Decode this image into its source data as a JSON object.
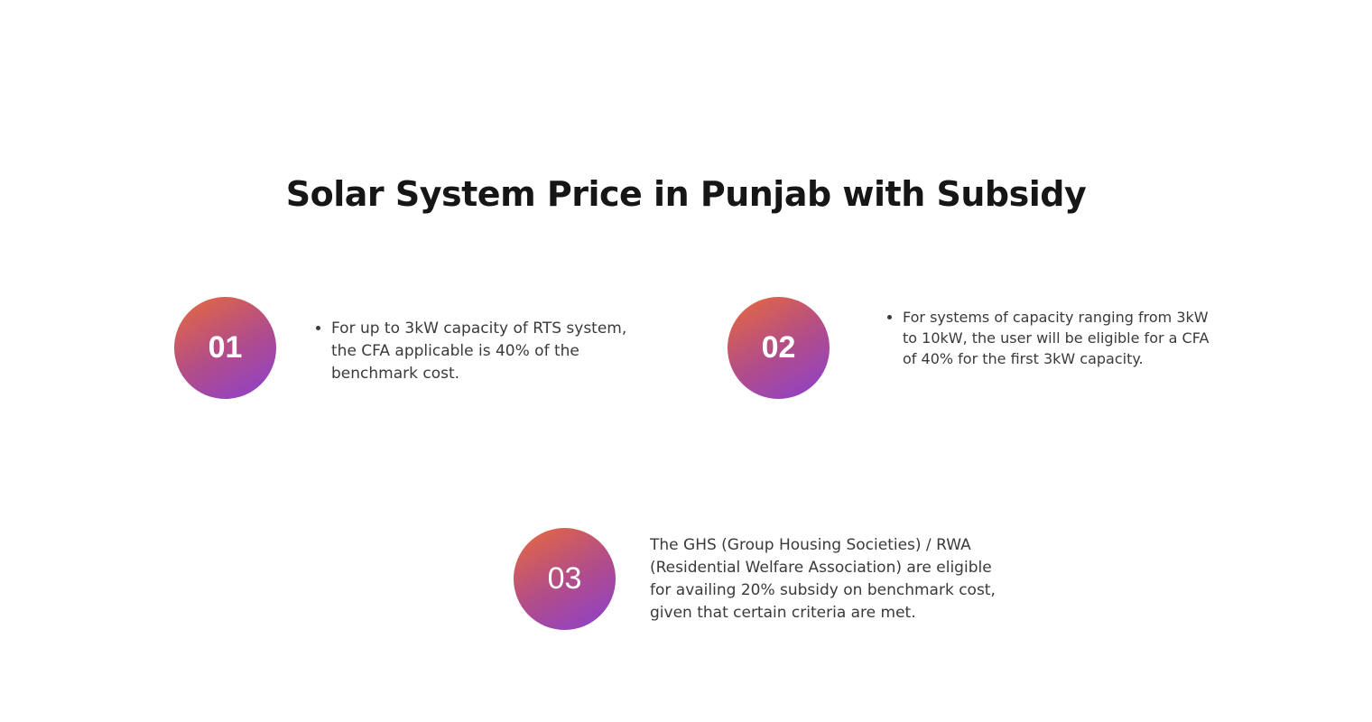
{
  "section": {
    "title": "Solar System Price in Punjab with Subsidy"
  },
  "steps": [
    {
      "number": "01",
      "text": "For up to 3kW capacity of RTS system, the CFA applicable is 40% of the benchmark cost."
    },
    {
      "number": "02",
      "text": "For systems of capacity ranging from 3kW to 10kW, the user will be eligible for a CFA of 40% for the first 3kW capacity."
    },
    {
      "number": "03",
      "text": "The GHS (Group Housing Societies) / RWA (Residential Welfare Association) are eligible for availing 20% subsidy on benchmark cost, given that certain criteria are met."
    }
  ],
  "colors": {
    "gradient_start": "#e96a3a",
    "gradient_mid": "#b44e86",
    "gradient_end": "#8a3fd0",
    "title": "#161616",
    "body_text": "#3a3a3a"
  }
}
